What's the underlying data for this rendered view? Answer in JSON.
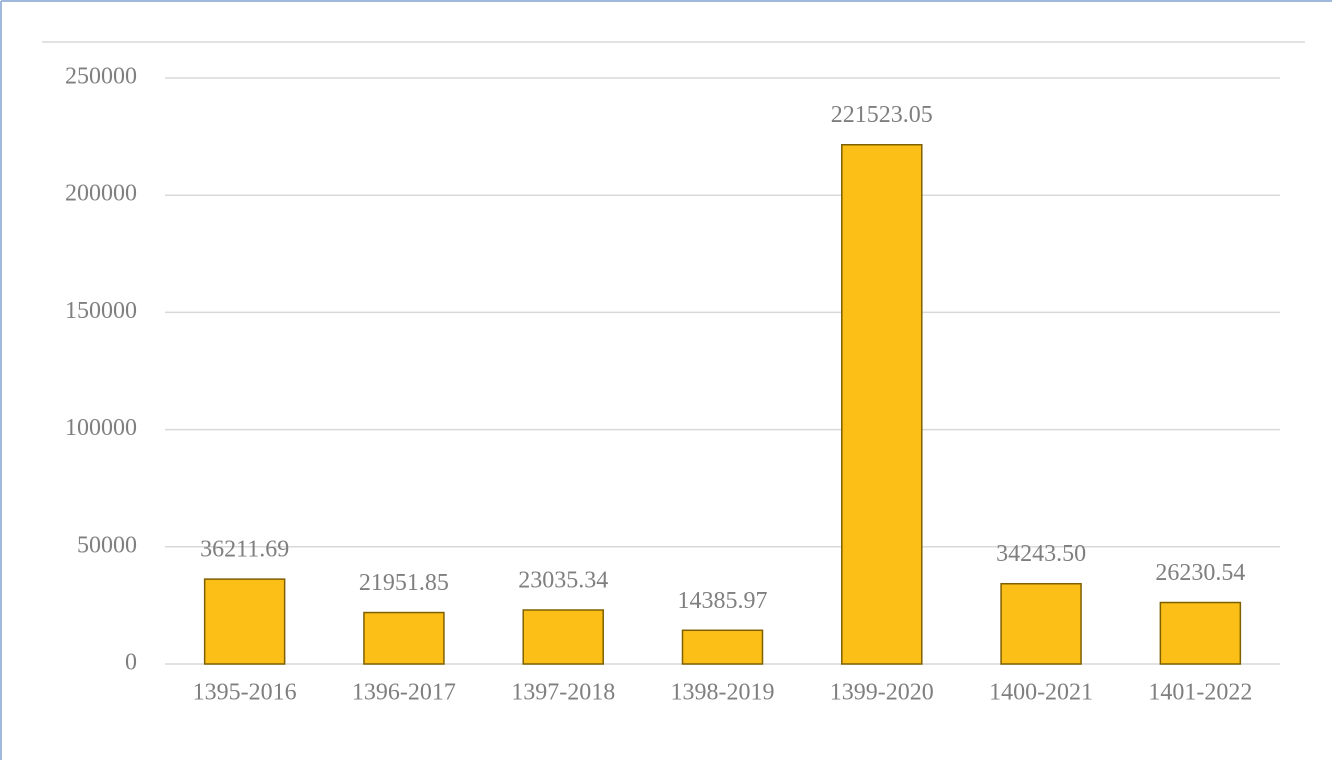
{
  "chart_data": {
    "type": "bar",
    "categories": [
      "1395-2016",
      "1396-2017",
      "1397-2018",
      "1398-2019",
      "1399-2020",
      "1400-2021",
      "1401-2022"
    ],
    "values": [
      36211.69,
      21951.85,
      23035.34,
      14385.97,
      221523.05,
      34243.5,
      26230.54
    ],
    "value_labels": [
      "36211.69",
      "21951.85",
      "23035.34",
      "14385.97",
      "221523.05",
      "34243.50",
      "26230.54"
    ],
    "color": "#fbbf17",
    "ylim": [
      0,
      250000
    ],
    "yticks": [
      0,
      50000,
      100000,
      150000,
      200000,
      250000
    ],
    "grid": true
  }
}
